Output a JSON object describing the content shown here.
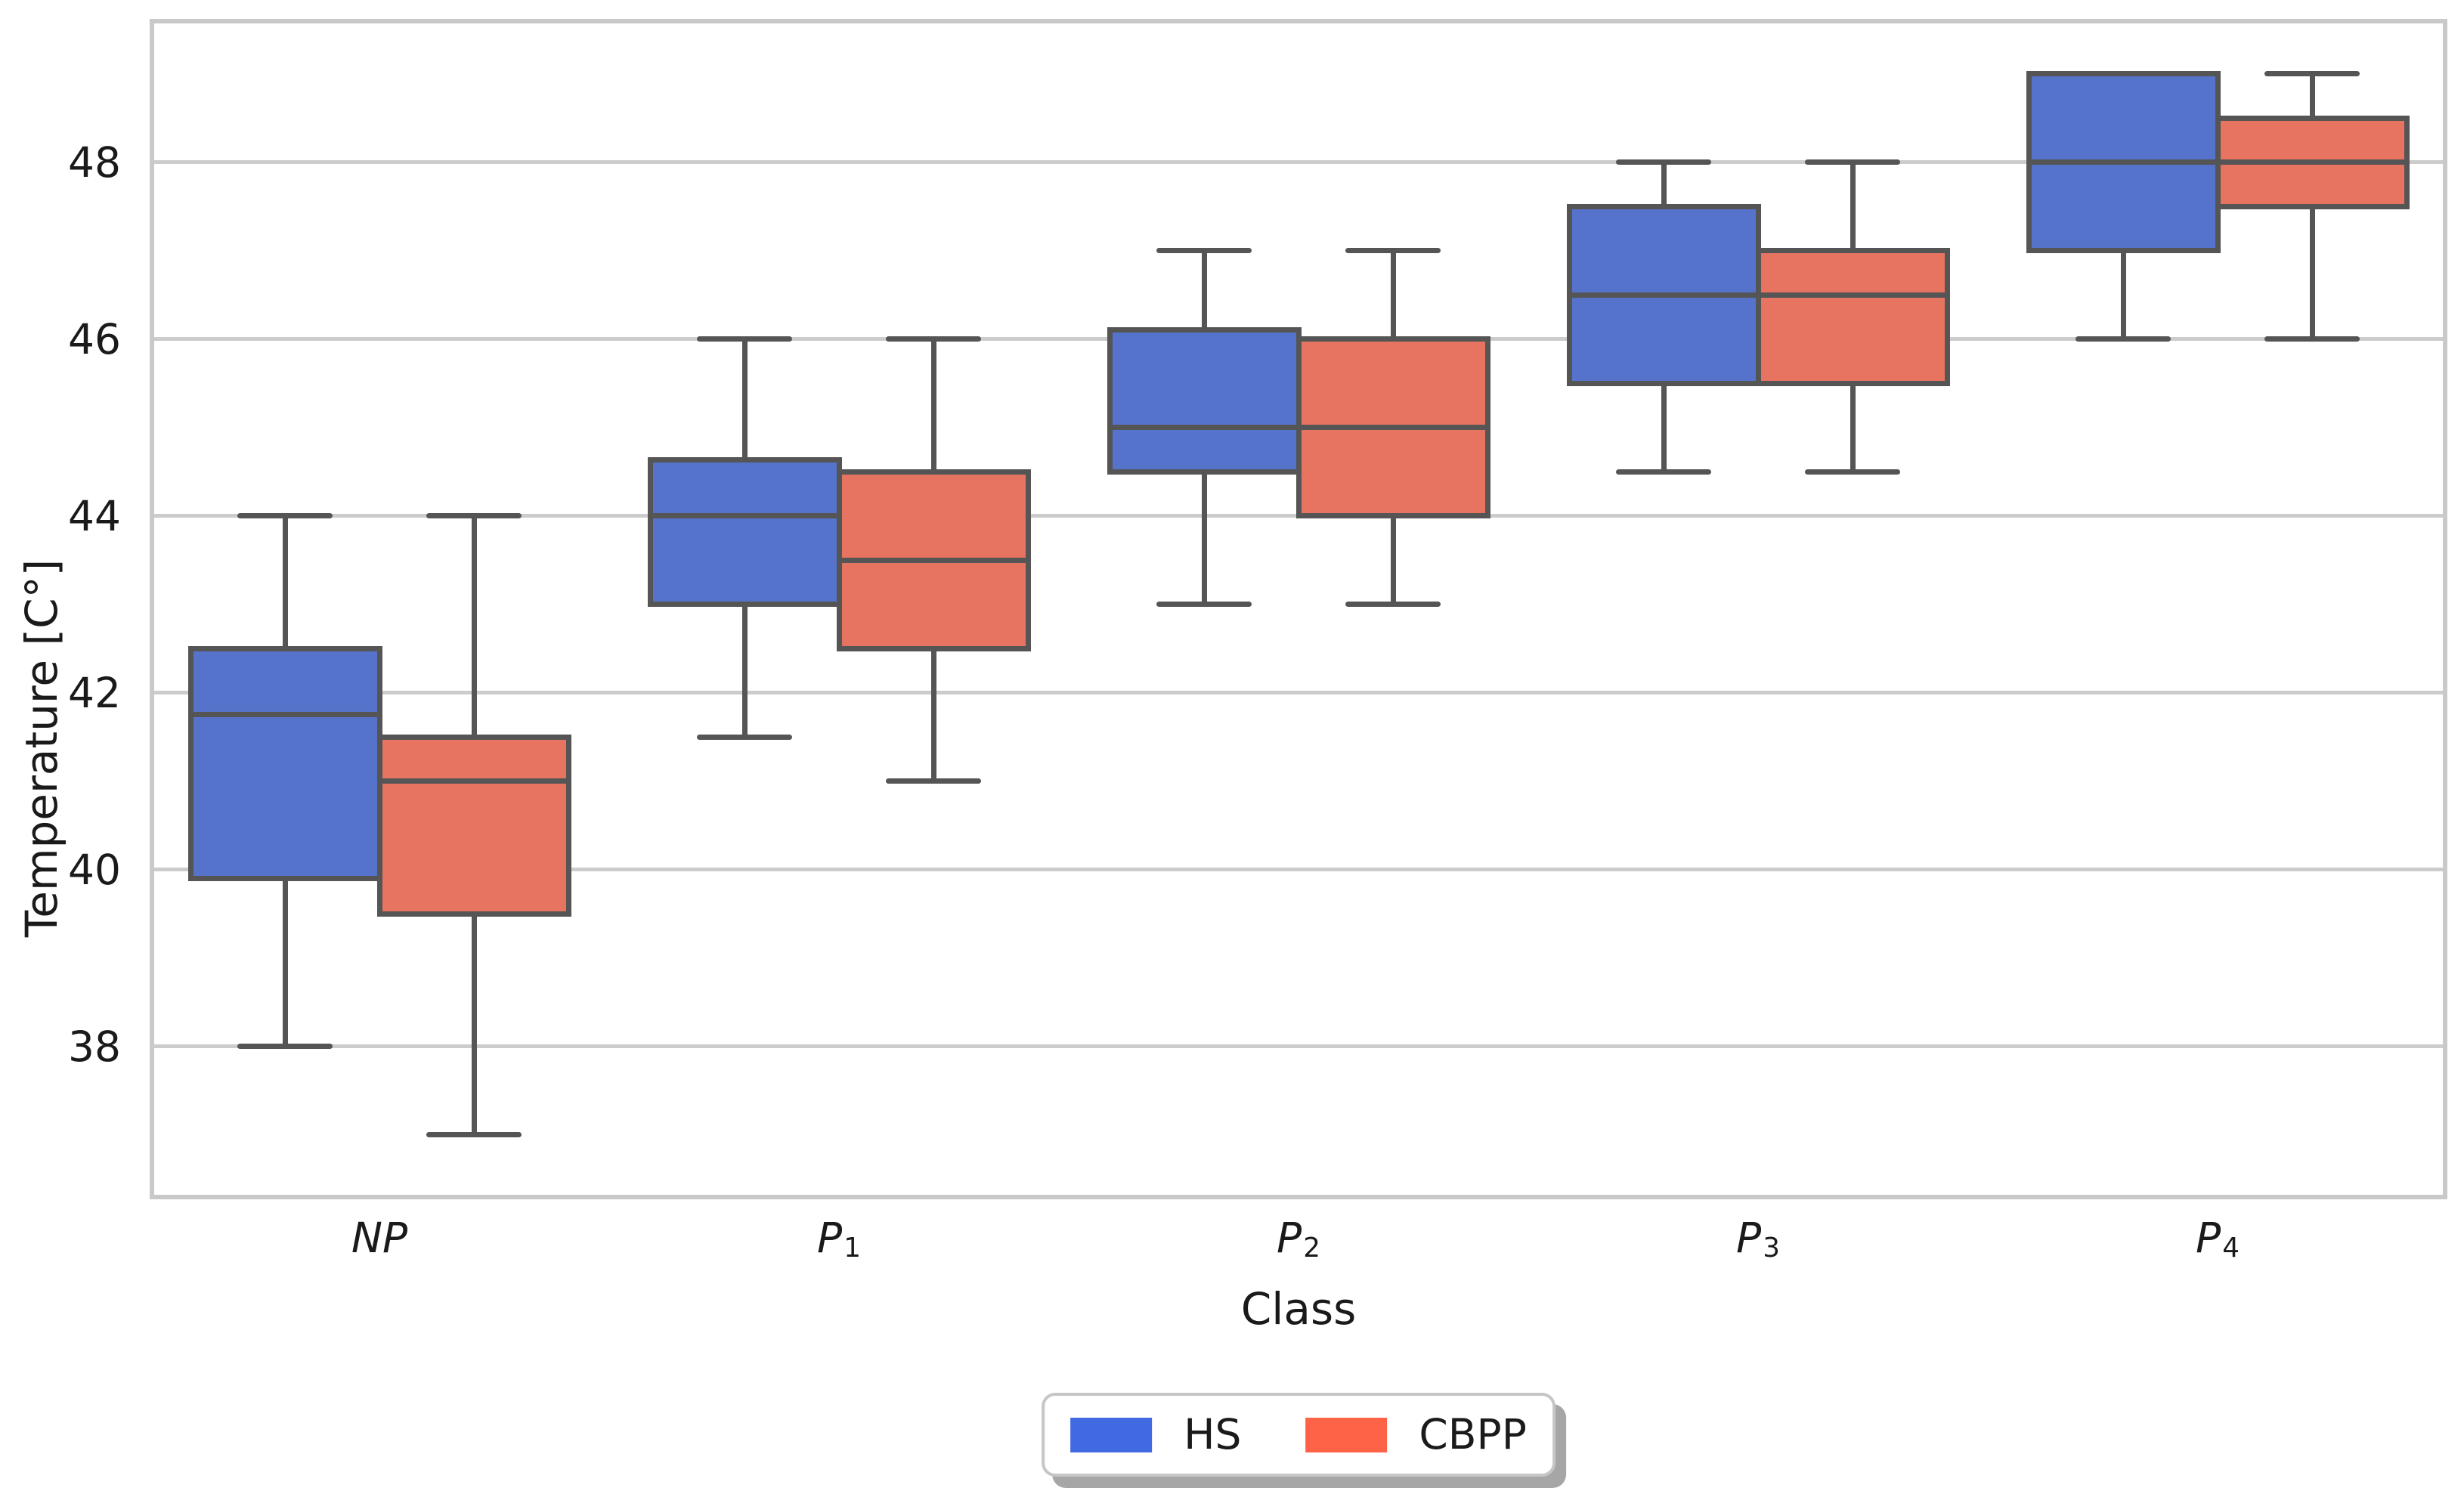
{
  "chart_data": {
    "type": "boxplot",
    "title": "",
    "xlabel": "Class",
    "ylabel": "Temperature [C°]",
    "categories": [
      {
        "key": "NP",
        "base": "NP",
        "sub": ""
      },
      {
        "key": "P1",
        "base": "P",
        "sub": "1"
      },
      {
        "key": "P2",
        "base": "P",
        "sub": "2"
      },
      {
        "key": "P3",
        "base": "P",
        "sub": "3"
      },
      {
        "key": "P4",
        "base": "P",
        "sub": "4"
      }
    ],
    "ylim": [
      36.27,
      49.62
    ],
    "yticks": [
      38,
      40,
      42,
      44,
      46,
      48
    ],
    "grid": "horizontal",
    "legend_position": "bottom-center",
    "colors": {
      "edge": "#555555",
      "grid": "#cccccc",
      "spine": "#c9c9c9",
      "text": "#1a1a1a",
      "background": "#ffffff"
    },
    "series": [
      {
        "name": "HS",
        "fill": "#5673cb",
        "legend_fill": "#4169e1",
        "boxes": [
          {
            "whislo": 38.0,
            "q1": 39.9,
            "med": 41.75,
            "q3": 42.5,
            "whishi": 44.0
          },
          {
            "whislo": 41.5,
            "q1": 43.0,
            "med": 44.0,
            "q3": 44.63,
            "whishi": 46.0
          },
          {
            "whislo": 43.0,
            "q1": 44.5,
            "med": 45.0,
            "q3": 46.1,
            "whishi": 47.0
          },
          {
            "whislo": 44.5,
            "q1": 45.5,
            "med": 46.5,
            "q3": 47.5,
            "whishi": 48.0
          },
          {
            "whislo": 46.0,
            "q1": 47.0,
            "med": 48.0,
            "q3": 49.0,
            "whishi": 49.0
          }
        ]
      },
      {
        "name": "CBPP",
        "fill": "#e77361",
        "legend_fill": "#ff6347",
        "boxes": [
          {
            "whislo": 37.0,
            "q1": 39.5,
            "med": 41.0,
            "q3": 41.5,
            "whishi": 44.0
          },
          {
            "whislo": 41.0,
            "q1": 42.5,
            "med": 43.5,
            "q3": 44.5,
            "whishi": 46.0
          },
          {
            "whislo": 43.0,
            "q1": 44.0,
            "med": 45.0,
            "q3": 46.0,
            "whishi": 47.0
          },
          {
            "whislo": 44.5,
            "q1": 45.5,
            "med": 46.5,
            "q3": 47.0,
            "whishi": 48.0
          },
          {
            "whislo": 46.0,
            "q1": 47.5,
            "med": 48.0,
            "q3": 48.5,
            "whishi": 49.0
          }
        ]
      }
    ]
  }
}
